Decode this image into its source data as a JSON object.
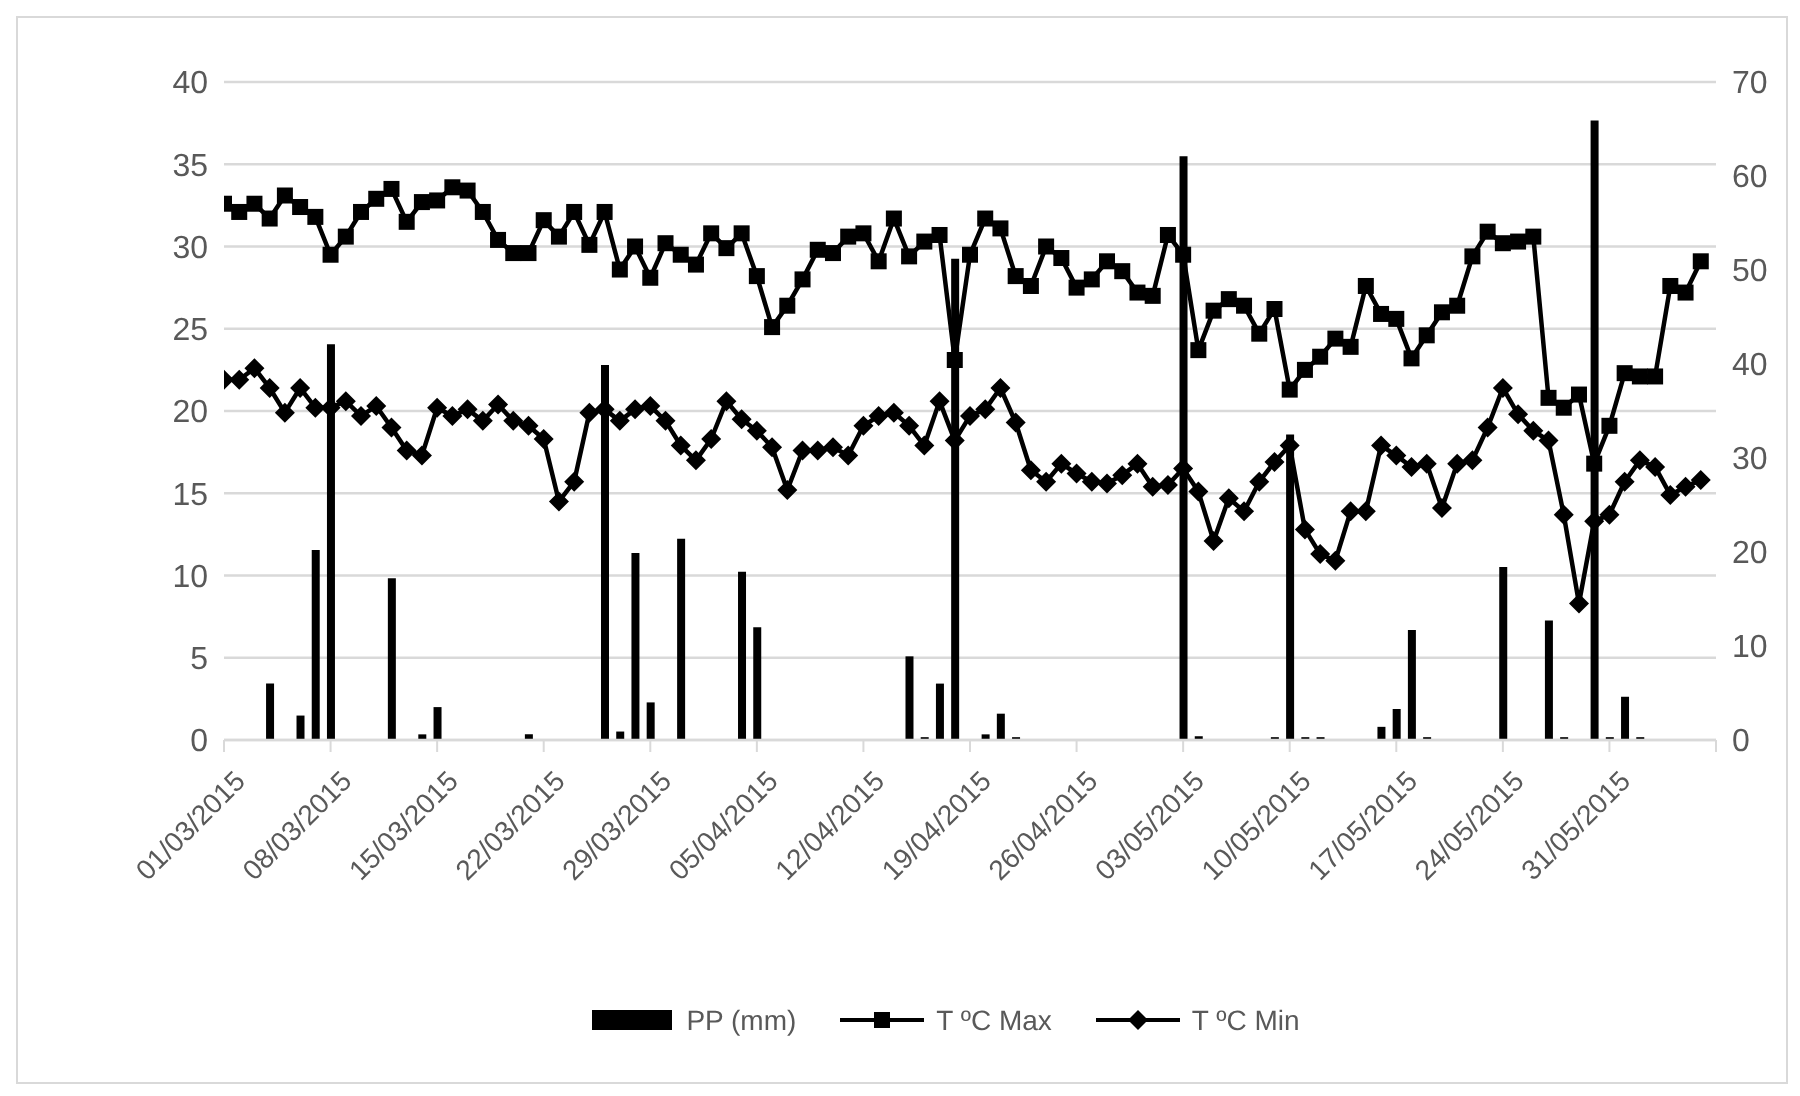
{
  "chart_data": {
    "type": "line",
    "x": [
      "2015-03-01",
      "2015-03-02",
      "2015-03-03",
      "2015-03-04",
      "2015-03-05",
      "2015-03-06",
      "2015-03-07",
      "2015-03-08",
      "2015-03-09",
      "2015-03-10",
      "2015-03-11",
      "2015-03-12",
      "2015-03-13",
      "2015-03-14",
      "2015-03-15",
      "2015-03-16",
      "2015-03-17",
      "2015-03-18",
      "2015-03-19",
      "2015-03-20",
      "2015-03-21",
      "2015-03-22",
      "2015-03-23",
      "2015-03-24",
      "2015-03-25",
      "2015-03-26",
      "2015-03-27",
      "2015-03-28",
      "2015-03-29",
      "2015-03-30",
      "2015-03-31",
      "2015-04-01",
      "2015-04-02",
      "2015-04-03",
      "2015-04-04",
      "2015-04-05",
      "2015-04-06",
      "2015-04-07",
      "2015-04-08",
      "2015-04-09",
      "2015-04-10",
      "2015-04-11",
      "2015-04-12",
      "2015-04-13",
      "2015-04-14",
      "2015-04-15",
      "2015-04-16",
      "2015-04-17",
      "2015-04-18",
      "2015-04-19",
      "2015-04-20",
      "2015-04-21",
      "2015-04-22",
      "2015-04-23",
      "2015-04-24",
      "2015-04-25",
      "2015-04-26",
      "2015-04-27",
      "2015-04-28",
      "2015-04-29",
      "2015-04-30",
      "2015-05-01",
      "2015-05-02",
      "2015-05-03",
      "2015-05-04",
      "2015-05-05",
      "2015-05-06",
      "2015-05-07",
      "2015-05-08",
      "2015-05-09",
      "2015-05-10",
      "2015-05-11",
      "2015-05-12",
      "2015-05-13",
      "2015-05-14",
      "2015-05-15",
      "2015-05-16",
      "2015-05-17",
      "2015-05-18",
      "2015-05-19",
      "2015-05-20",
      "2015-05-21",
      "2015-05-22",
      "2015-05-23",
      "2015-05-24",
      "2015-05-25",
      "2015-05-26",
      "2015-05-27",
      "2015-05-28",
      "2015-05-29",
      "2015-05-30",
      "2015-05-31",
      "2015-06-01",
      "2015-06-02",
      "2015-06-03",
      "2015-06-04",
      "2015-06-05",
      "2015-06-06"
    ],
    "series": [
      {
        "name": "PP (mm)",
        "type": "bar",
        "axis": "y2",
        "color": "#000000",
        "values": [
          0,
          0,
          0,
          6.0,
          0,
          2.6,
          20.2,
          42.1,
          0,
          0,
          0,
          17.2,
          0,
          0.6,
          3.5,
          0,
          0,
          0,
          0,
          0,
          0.6,
          0,
          0,
          0,
          0,
          39.9,
          0.9,
          19.9,
          4.0,
          0,
          21.4,
          0,
          0,
          0,
          17.9,
          12.0,
          0,
          0,
          0,
          0,
          0,
          0,
          0,
          0,
          0,
          8.9,
          0.3,
          6.0,
          51.2,
          0,
          0.6,
          2.8,
          0.3,
          0,
          0,
          0,
          0,
          0,
          0,
          0,
          0,
          0,
          0,
          62.1,
          0.4,
          0,
          0,
          0,
          0,
          0.3,
          32.5,
          0.3,
          0.3,
          0,
          0,
          0,
          1.4,
          3.3,
          11.7,
          0.3,
          0,
          0,
          0,
          0,
          18.4,
          0,
          0,
          12.7,
          0.3,
          0,
          65.9,
          0.3,
          4.6,
          0.3,
          0,
          0,
          0,
          0
        ]
      },
      {
        "name": "T ºC Max",
        "color": "#000000",
        "marker": "square",
        "values": [
          32.6,
          32.1,
          32.6,
          31.7,
          33.1,
          32.4,
          31.8,
          29.5,
          30.6,
          32.1,
          32.9,
          33.5,
          31.5,
          32.7,
          32.8,
          33.6,
          33.4,
          32.1,
          30.4,
          29.6,
          29.6,
          31.6,
          30.6,
          32.1,
          30.1,
          32.1,
          28.6,
          30.0,
          28.1,
          30.2,
          29.5,
          28.9,
          30.8,
          29.9,
          30.8,
          28.2,
          25.1,
          26.4,
          28.0,
          29.8,
          29.6,
          30.6,
          30.8,
          29.1,
          31.7,
          29.4,
          30.3,
          30.7,
          23.1,
          29.5,
          31.7,
          31.1,
          28.2,
          27.6,
          30.0,
          29.3,
          27.5,
          28.0,
          29.1,
          28.5,
          27.2,
          27.0,
          30.7,
          29.5,
          23.7,
          26.1,
          26.8,
          26.4,
          24.7,
          26.2,
          21.3,
          22.5,
          23.3,
          24.4,
          23.9,
          27.6,
          25.9,
          25.6,
          23.2,
          24.6,
          26.0,
          26.4,
          29.4,
          30.9,
          30.2,
          30.3,
          30.6,
          20.8,
          20.2,
          21.0,
          16.8,
          19.1,
          22.3,
          22.1,
          22.1,
          27.6,
          27.2,
          29.1
        ]
      },
      {
        "name": "T ºC Min",
        "color": "#000000",
        "marker": "diamond",
        "values": [
          21.9,
          21.9,
          22.6,
          21.4,
          19.9,
          21.4,
          20.2,
          20.2,
          20.6,
          19.7,
          20.3,
          19.0,
          17.6,
          17.3,
          20.2,
          19.7,
          20.1,
          19.4,
          20.4,
          19.4,
          19.1,
          18.3,
          14.5,
          15.7,
          19.9,
          20.1,
          19.4,
          20.1,
          20.3,
          19.4,
          17.9,
          17.0,
          18.3,
          20.6,
          19.5,
          18.8,
          17.8,
          15.2,
          17.6,
          17.6,
          17.8,
          17.3,
          19.1,
          19.7,
          19.9,
          19.1,
          17.9,
          20.6,
          18.2,
          19.7,
          20.1,
          21.4,
          19.3,
          16.4,
          15.7,
          16.8,
          16.2,
          15.7,
          15.6,
          16.1,
          16.8,
          15.4,
          15.5,
          16.5,
          15.1,
          12.1,
          14.7,
          13.9,
          15.7,
          16.9,
          17.9,
          12.8,
          11.3,
          10.9,
          13.9,
          13.9,
          17.9,
          17.3,
          16.6,
          16.8,
          14.1,
          16.8,
          17.0,
          19.0,
          21.4,
          19.8,
          18.8,
          18.2,
          13.7,
          8.3,
          13.3,
          13.7,
          15.7,
          17.0,
          16.6,
          14.9,
          15.4,
          15.8
        ]
      }
    ],
    "xlim": [
      "2015-03-01",
      "2015-06-07"
    ],
    "xticks": [
      {
        "value": "2015-03-01",
        "label": "01/03/2015"
      },
      {
        "value": "2015-03-08",
        "label": "08/03/2015"
      },
      {
        "value": "2015-03-15",
        "label": "15/03/2015"
      },
      {
        "value": "2015-03-22",
        "label": "22/03/2015"
      },
      {
        "value": "2015-03-29",
        "label": "29/03/2015"
      },
      {
        "value": "2015-04-05",
        "label": "05/04/2015"
      },
      {
        "value": "2015-04-12",
        "label": "12/04/2015"
      },
      {
        "value": "2015-04-19",
        "label": "19/04/2015"
      },
      {
        "value": "2015-04-26",
        "label": "26/04/2015"
      },
      {
        "value": "2015-05-03",
        "label": "03/05/2015"
      },
      {
        "value": "2015-05-10",
        "label": "10/05/2015"
      },
      {
        "value": "2015-05-17",
        "label": "17/05/2015"
      },
      {
        "value": "2015-05-24",
        "label": "24/05/2015"
      },
      {
        "value": "2015-05-31",
        "label": "31/05/2015"
      },
      {
        "value": "2015-06-07",
        "label": null
      }
    ],
    "ylim": [
      0,
      40
    ],
    "yticks": [
      0,
      5,
      10,
      15,
      20,
      25,
      30,
      35,
      40
    ],
    "y2lim": [
      0,
      70
    ],
    "y2ticks": [
      0,
      10,
      20,
      30,
      40,
      50,
      60,
      70
    ],
    "grid": "y",
    "legend": "bottom"
  }
}
